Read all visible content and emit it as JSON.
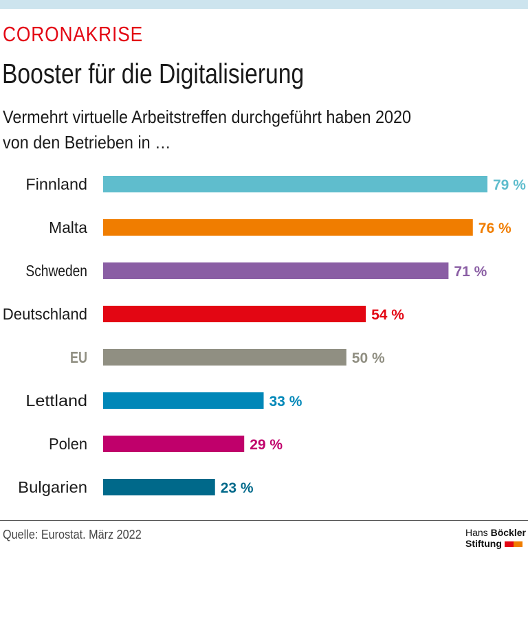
{
  "header": {
    "kicker": "CORONAKRISE",
    "title": "Booster für die Digitalisierung",
    "subtitle_line1": "Vermehrt virtuelle Arbeitstreffen durchgeführt haben 2020",
    "subtitle_line2": "von den Betrieben in …"
  },
  "chart_data": {
    "type": "bar",
    "orientation": "horizontal",
    "categories": [
      "Finnland",
      "Malta",
      "Schweden",
      "Deutschland",
      "EU",
      "Lettland",
      "Polen",
      "Bulgarien"
    ],
    "values": [
      79,
      76,
      71,
      54,
      50,
      33,
      29,
      23
    ],
    "value_labels": [
      "79 %",
      "76 %",
      "71 %",
      "54 %",
      "50 %",
      "33 %",
      "29 %",
      "23 %"
    ],
    "colors": [
      "#5fbdcd",
      "#f07d00",
      "#8a5ea4",
      "#e30613",
      "#908f82",
      "#0087b8",
      "#c0006b",
      "#00698a"
    ],
    "unit": "%",
    "xlim": [
      0,
      100
    ],
    "grid": false
  },
  "footer": {
    "source": "Quelle: Eurostat. März 2022",
    "logo_line1a": "Hans",
    "logo_line1b": "Böckler",
    "logo_line2": "Stiftung",
    "logo_colors": [
      "#e30613",
      "#f07d00"
    ]
  }
}
